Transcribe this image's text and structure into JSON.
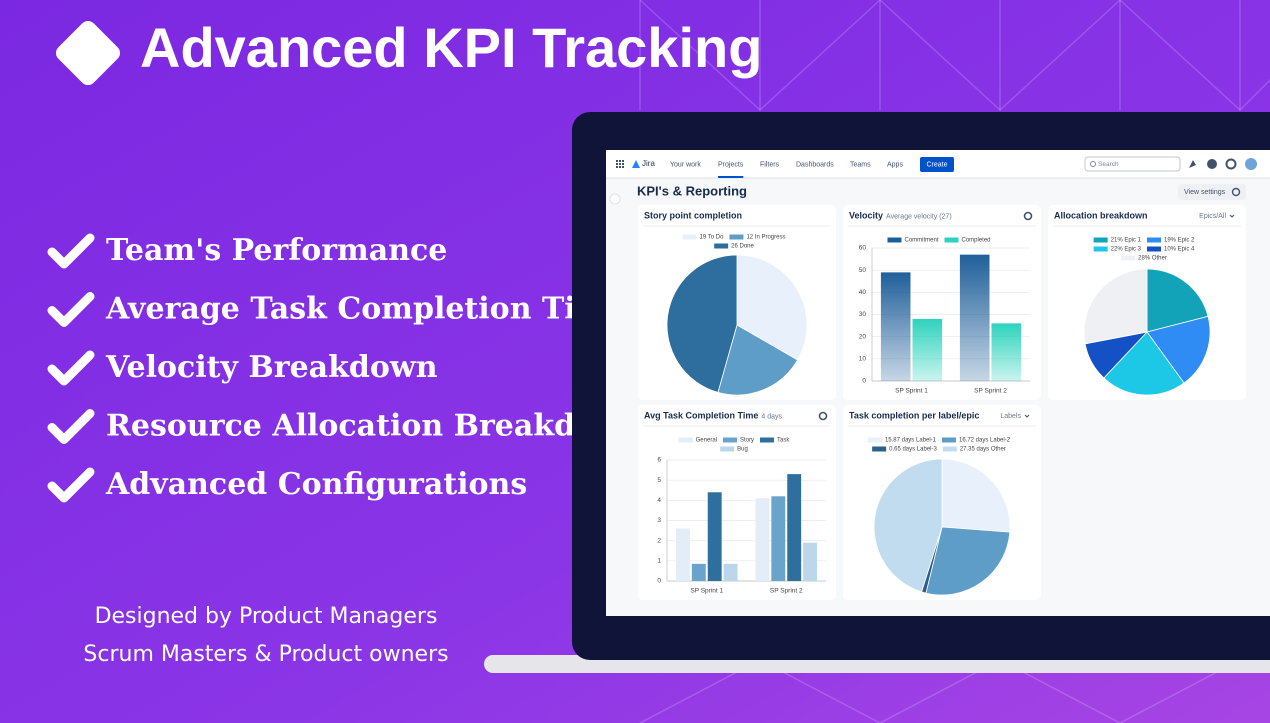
{
  "header": {
    "title": "Advanced KPI Tracking"
  },
  "features": [
    "Team's Performance",
    "Average Task Completion Time",
    "Velocity Breakdown",
    "Resource Allocation Breakdown",
    "Advanced Configurations"
  ],
  "footer": [
    "Designed by Product Managers",
    "Scrum Masters & Product owners"
  ],
  "app": {
    "logo": "Jira",
    "nav": [
      "Your work",
      "Projects",
      "Filters",
      "Dashboards",
      "Teams",
      "Apps"
    ],
    "create": "Create",
    "search": "Search",
    "page_title": "KPI's & Reporting",
    "view_settings": "View settings"
  },
  "chart_data": [
    {
      "type": "pie",
      "title": "Story point completion",
      "categories": [
        "19 To Do",
        "12 In Progress",
        "26 Done"
      ],
      "values": [
        19,
        12,
        26
      ],
      "colors": [
        "#e8f1fb",
        "#5e9dc8",
        "#2e6e9e"
      ]
    },
    {
      "type": "bar",
      "title": "Velocity",
      "subtitle": "Average velocity (27)",
      "categories": [
        "SP Sprint 1",
        "SP Sprint 2"
      ],
      "series": [
        {
          "name": "Commitment",
          "color": "#1f5f99",
          "values": [
            49,
            57
          ]
        },
        {
          "name": "Completed",
          "color": "#2ed3bd",
          "values": [
            28,
            26
          ]
        }
      ],
      "ylim": [
        0,
        60
      ],
      "yticks": [
        0,
        10,
        20,
        30,
        40,
        50,
        60
      ],
      "grid": true
    },
    {
      "type": "pie",
      "title": "Allocation breakdown",
      "filter": "Epics/All",
      "categories": [
        "21% Epic 1",
        "19% Epic 2",
        "22% Epic 3",
        "10% Epic 4",
        "28% Other"
      ],
      "values": [
        21,
        19,
        22,
        10,
        28
      ],
      "colors": [
        "#13a3b8",
        "#2f8cf5",
        "#1cc8e6",
        "#1451c4",
        "#eef0f4"
      ]
    },
    {
      "type": "bar",
      "title": "Avg Task Completion Time",
      "subtitle": "4 days",
      "categories": [
        "SP Sprint 1",
        "SP Sprint 2"
      ],
      "series": [
        {
          "name": "General",
          "color": "#e3edf8",
          "values": [
            2.6,
            4.1
          ]
        },
        {
          "name": "Story",
          "color": "#6aa3cc",
          "values": [
            0.85,
            4.2
          ]
        },
        {
          "name": "Task",
          "color": "#2f6f9e",
          "values": [
            4.4,
            5.3
          ]
        },
        {
          "name": "Bug",
          "color": "#bcd6ec",
          "values": [
            0.85,
            1.9
          ]
        }
      ],
      "ylim": [
        0,
        6
      ],
      "yticks": [
        0,
        1,
        2,
        3,
        4,
        5,
        6
      ],
      "grid": true
    },
    {
      "type": "pie",
      "title": "Task completion per label/epic",
      "filter": "Labels",
      "categories": [
        "15.87 days Label-1",
        "16.72 days Label-2",
        "0.65 days Label-3",
        "27.35 days Other"
      ],
      "values": [
        15.87,
        16.72,
        0.65,
        27.35
      ],
      "colors": [
        "#e8f1fb",
        "#5e9dc8",
        "#2e5f8a",
        "#c2dcef"
      ]
    }
  ]
}
